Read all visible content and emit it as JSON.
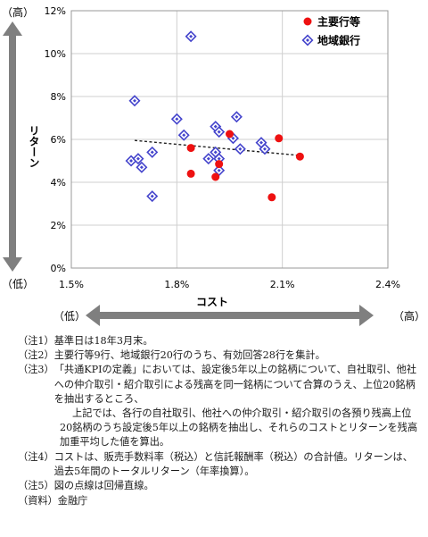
{
  "chart_data": {
    "type": "scatter",
    "ylabel": "リターン",
    "xlabel": "コスト",
    "y_axis_high": "（高）",
    "y_axis_low": "（低）",
    "x_axis_low": "（低）",
    "x_axis_high": "（高）",
    "xlim": [
      1.5,
      2.4
    ],
    "ylim": [
      0,
      12
    ],
    "x_ticks": [
      "1.5%",
      "1.8%",
      "2.1%",
      "2.4%"
    ],
    "y_ticks": [
      "0%",
      "2%",
      "4%",
      "6%",
      "8%",
      "10%",
      "12%"
    ],
    "legend_position": "top-right",
    "grid": true,
    "series": [
      {
        "name": "主要行等",
        "color": "#ee1111",
        "marker": "circle",
        "points": [
          [
            1.84,
            5.6
          ],
          [
            1.84,
            4.4
          ],
          [
            1.91,
            4.25
          ],
          [
            1.92,
            4.85
          ],
          [
            1.95,
            6.25
          ],
          [
            2.07,
            3.3
          ],
          [
            2.09,
            6.05
          ],
          [
            2.15,
            5.2
          ]
        ]
      },
      {
        "name": "地域銀行",
        "color": "#4444cc",
        "marker": "diamond",
        "points": [
          [
            1.84,
            10.8
          ],
          [
            1.68,
            7.8
          ],
          [
            1.8,
            6.95
          ],
          [
            1.82,
            6.2
          ],
          [
            1.67,
            5.0
          ],
          [
            1.69,
            5.1
          ],
          [
            1.7,
            4.7
          ],
          [
            1.73,
            5.4
          ],
          [
            1.73,
            3.35
          ],
          [
            1.89,
            5.1
          ],
          [
            1.91,
            5.4
          ],
          [
            1.92,
            5.1
          ],
          [
            1.92,
            4.55
          ],
          [
            1.91,
            6.6
          ],
          [
            1.92,
            6.35
          ],
          [
            1.97,
            7.05
          ],
          [
            1.96,
            6.05
          ],
          [
            1.98,
            5.55
          ],
          [
            2.04,
            5.85
          ],
          [
            2.05,
            5.55
          ]
        ]
      }
    ],
    "trendline": {
      "style": "dotted",
      "start": [
        1.68,
        5.95
      ],
      "end": [
        2.15,
        5.25
      ]
    }
  },
  "notes": [
    {
      "label": "（注1）",
      "text": "基準日は18年3月末。"
    },
    {
      "label": "（注2）",
      "text": "主要行等9行、地域銀行20行のうち、有効回答28行を集計。"
    },
    {
      "label": "（注3）",
      "text": "「共通KPIの定義」においては、設定後5年以上の銘柄について、自社取引、他社への仲介取引・紹介取引による残高を同一銘柄について合算のうえ、上位20銘柄を抽出するところ、",
      "extra": "上記では、各行の自社取引、他社への仲介取引・紹介取引の各預り残高上位20銘柄のうち設定後5年以上の銘柄を抽出し、それらのコストとリターンを残高加重平均した値を算出。"
    },
    {
      "label": "（注4）",
      "text": "コストは、販売手数料率（税込）と信託報酬率（税込）の合計値。リターンは、過去5年間のトータルリターン（年率換算）。"
    },
    {
      "label": "（注5）",
      "text": "図の点線は回帰直線。"
    },
    {
      "label": "（資料）",
      "text": "金融庁"
    }
  ]
}
